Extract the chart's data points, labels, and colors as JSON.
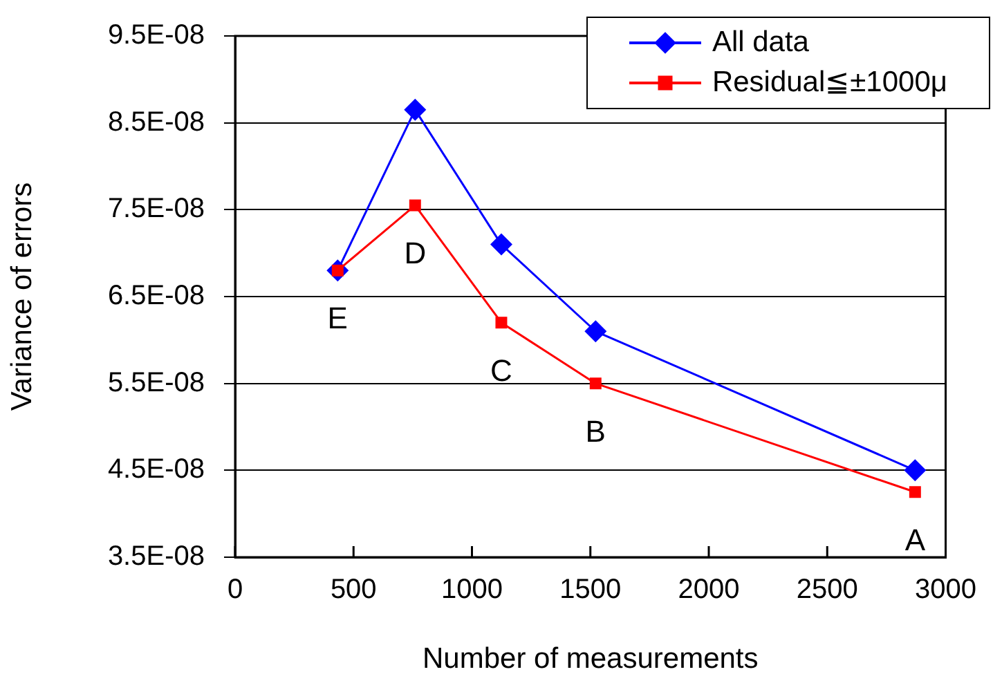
{
  "chart_data": {
    "type": "line",
    "xlabel": "Number of measurements",
    "ylabel": "Variance of errors",
    "x": [
      433,
      760,
      1124,
      1522,
      2871
    ],
    "series": [
      {
        "name": "All data",
        "color": "#0000ff",
        "marker": "diamond",
        "values": [
          6.8e-08,
          8.65e-08,
          7.1e-08,
          6.1e-08,
          4.5e-08
        ]
      },
      {
        "name": "Residual≦±1000μ",
        "color": "#ff0000",
        "marker": "square",
        "values": [
          6.8e-08,
          7.55e-08,
          6.2e-08,
          5.5e-08,
          4.25e-08
        ]
      }
    ],
    "xlim": [
      0,
      3000
    ],
    "xticks": [
      0,
      500,
      1000,
      1500,
      2000,
      2500,
      3000
    ],
    "ylim": [
      3.5e-08,
      9.5e-08
    ],
    "yticks": [
      {
        "value": 3.5e-08,
        "label": "3.5E-08"
      },
      {
        "value": 4.5e-08,
        "label": "4.5E-08"
      },
      {
        "value": 5.5e-08,
        "label": "5.5E-08"
      },
      {
        "value": 6.5e-08,
        "label": "6.5E-08"
      },
      {
        "value": 7.5e-08,
        "label": "7.5E-08"
      },
      {
        "value": 8.5e-08,
        "label": "8.5E-08"
      },
      {
        "value": 9.5e-08,
        "label": "9.5E-08"
      }
    ],
    "grid": "y",
    "legend": "top right",
    "line_style": "solid",
    "annotations": [
      {
        "text": "E",
        "x": 433,
        "y": 6.8e-08
      },
      {
        "text": "D",
        "x": 760,
        "y": 7.55e-08
      },
      {
        "text": "C",
        "x": 1124,
        "y": 6.2e-08
      },
      {
        "text": "B",
        "x": 1522,
        "y": 5.5e-08
      },
      {
        "text": "A",
        "x": 2871,
        "y": 4.25e-08
      }
    ]
  }
}
